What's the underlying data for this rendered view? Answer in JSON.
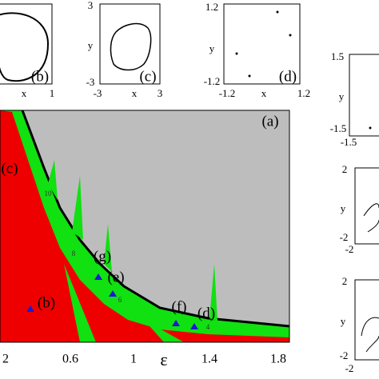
{
  "panels": {
    "b": {
      "label": "(b)",
      "xlabel": "x",
      "xtick_right": "1"
    },
    "c": {
      "label": "(c)",
      "xlabel": "x",
      "ylabel": "y",
      "xticks": [
        "-3",
        "3"
      ],
      "yticks": [
        "3",
        "-3"
      ]
    },
    "d": {
      "label": "(d)",
      "xlabel": "x",
      "ylabel": "y",
      "xticks": [
        "-1.2",
        "1.2"
      ],
      "yticks": [
        "1.2",
        "-1.2"
      ]
    },
    "e": {
      "ylabel": "y",
      "yticks": [
        "1.5",
        "-1.5"
      ],
      "xtick_left": "-1.5"
    },
    "f": {
      "ylabel": "y",
      "yticks": [
        "2",
        "-2"
      ],
      "xtick_left": "-2"
    },
    "g": {
      "ylabel": "y",
      "yticks": [
        "2",
        "-2"
      ],
      "xtick_left": "-2"
    },
    "a": {
      "label": "(a)",
      "xlabel": "ε",
      "xticks": [
        "2",
        "0.6",
        "1",
        "1.4",
        "1.8"
      ],
      "region_labels": [
        "(c)",
        "(b)",
        "(g)",
        "(e)",
        "(f)",
        "(d)"
      ],
      "period_labels": [
        "10",
        "8",
        "6",
        "4"
      ]
    }
  }
}
